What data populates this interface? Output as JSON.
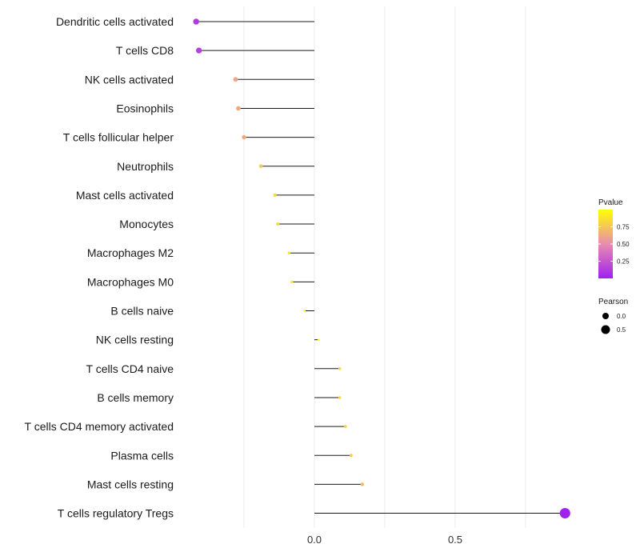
{
  "chart_data": {
    "type": "lollipop",
    "title": "",
    "xlabel": "",
    "ylabel": "",
    "xlim": [
      -0.55,
      0.9
    ],
    "x_ticks": [
      0.0,
      0.5
    ],
    "x_tick_labels": [
      "0.0",
      "0.5"
    ],
    "categories": [
      "Dendritic cells activated",
      "T cells CD8",
      "NK cells activated",
      "Eosinophils",
      "T cells follicular helper",
      "Neutrophils",
      "Mast cells activated",
      "Monocytes",
      "Macrophages M2",
      "Macrophages M0",
      "B cells naive",
      "NK cells resting",
      "T cells CD4 naive",
      "B cells memory",
      "T cells CD4 memory activated",
      "Plasma cells",
      "Mast cells resting",
      "T cells regulatory  Tregs"
    ],
    "pearson": [
      -0.42,
      -0.41,
      -0.28,
      -0.27,
      -0.25,
      -0.19,
      -0.14,
      -0.13,
      -0.09,
      -0.08,
      -0.035,
      0.015,
      0.09,
      0.09,
      0.11,
      0.13,
      0.17,
      0.89
    ],
    "pvalue": [
      0.12,
      0.15,
      0.6,
      0.62,
      0.63,
      0.78,
      0.82,
      0.83,
      0.9,
      0.92,
      0.97,
      0.99,
      0.85,
      0.83,
      0.8,
      0.78,
      0.7,
      0.01
    ],
    "legend_color": {
      "title": "Pvalue",
      "ticks": [
        0.25,
        0.5,
        0.75
      ],
      "tick_labels": [
        "0.25",
        "0.50",
        "0.75"
      ],
      "low_color": "#a020f0",
      "mid_color": "#e88cb0",
      "high_color": "#ffff00"
    },
    "legend_size": {
      "title": "Pearson",
      "values": [
        0.0,
        0.5
      ],
      "labels": [
        "0.0",
        "0.5"
      ]
    }
  }
}
